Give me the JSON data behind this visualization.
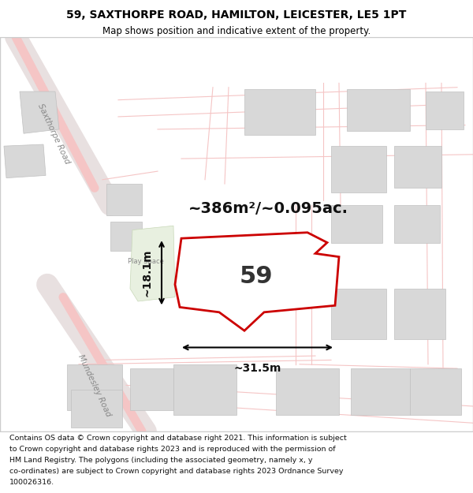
{
  "title_line1": "59, SAXTHORPE ROAD, HAMILTON, LEICESTER, LE5 1PT",
  "title_line2": "Map shows position and indicative extent of the property.",
  "footer_text": "Contains OS data © Crown copyright and database right 2021. This information is subject to Crown copyright and database rights 2023 and is reproduced with the permission of HM Land Registry. The polygons (including the associated geometry, namely x, y co-ordinates) are subject to Crown copyright and database rights 2023 Ordnance Survey 100026316.",
  "area_text": "~386m²/~0.095ac.",
  "property_number": "59",
  "dim_width": "~31.5m",
  "dim_height": "~18.1m",
  "background_color": "#f5f5f0",
  "map_bg": "#ffffff",
  "title_bg": "#ffffff",
  "footer_bg": "#ffffff",
  "road_color_light": "#f5c5c5",
  "building_color": "#d8d8d8",
  "building_border": "#cccccc",
  "property_fill": "#ffffff",
  "property_border": "#cc0000",
  "road_label_color": "#888888",
  "green_area_color": "#e8f0e0",
  "dim_line_color": "#000000"
}
